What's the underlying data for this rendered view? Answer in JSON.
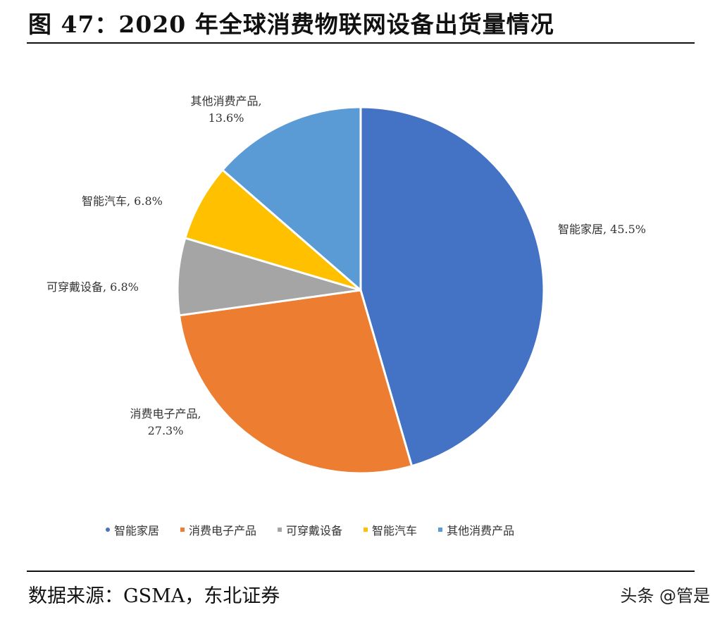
{
  "header": {
    "title": "图 47：2020 年全球消费物联网设备出货量情况"
  },
  "chart_data": {
    "type": "pie",
    "title": "2020 年全球消费物联网设备出货量情况",
    "start_angle": "12 o'clock, clockwise",
    "categories": [
      "智能家居",
      "消费电子产品",
      "可穿戴设备",
      "智能汽车",
      "其他消费产品"
    ],
    "values": [
      45.5,
      27.3,
      6.8,
      6.8,
      13.6
    ],
    "unit": "%",
    "colors": [
      "#4472C4",
      "#ED7D31",
      "#A5A5A5",
      "#FFC000",
      "#5B9BD5"
    ],
    "data_labels": [
      {
        "line1": "智能家居, 45.5%",
        "line2": ""
      },
      {
        "line1": "消费电子产品,",
        "line2": "27.3%"
      },
      {
        "line1": "可穿戴设备, 6.8%",
        "line2": ""
      },
      {
        "line1": "智能汽车, 6.8%",
        "line2": ""
      },
      {
        "line1": "其他消费产品,",
        "line2": "13.6%"
      }
    ],
    "legend": {
      "position": "bottom",
      "entries": [
        "智能家居",
        "消费电子产品",
        "可穿戴设备",
        "智能汽车",
        "其他消费产品"
      ]
    }
  },
  "footer": {
    "source": "数据来源：GSMA，东北证券",
    "watermark": "头条 @管是"
  }
}
